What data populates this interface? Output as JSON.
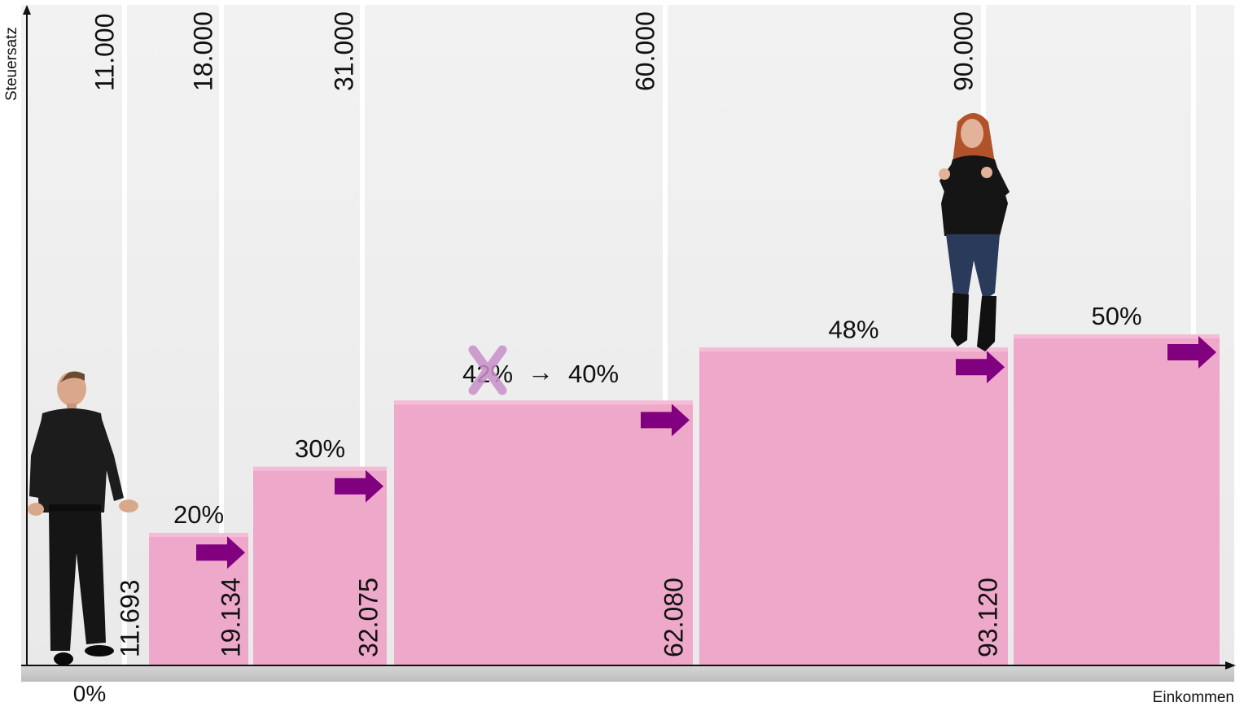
{
  "chart_data": {
    "type": "bar",
    "ylabel": "Steuersatz",
    "xlabel": "Einkommen",
    "zero_rate_label": "0%",
    "old_thresholds": [
      "11.000",
      "18.000",
      "31.000",
      "60.000",
      "90.000"
    ],
    "new_thresholds": [
      "11.693",
      "19.134",
      "32.075",
      "62.080",
      "93.120"
    ],
    "bars": [
      {
        "rate": 20,
        "label": "20%",
        "start": "11.693",
        "end": "19.134"
      },
      {
        "rate": 30,
        "label": "30%",
        "start": "19.134",
        "end": "32.075"
      },
      {
        "rate": 40,
        "label": "40%",
        "old_label": "42%",
        "arrow": "→",
        "start": "32.075",
        "end": "62.080"
      },
      {
        "rate": 48,
        "label": "48%",
        "start": "62.080",
        "end": "93.120"
      },
      {
        "rate": 50,
        "label": "50%",
        "start": "93.120",
        "end": ""
      }
    ],
    "colors": {
      "bar": "#eea8c9",
      "bar_top": "#f4bcd6",
      "arrow": "#800080",
      "strike": "#c890c8",
      "background": "#efefef",
      "ground": "#c4c4c4"
    }
  },
  "figures": [
    {
      "name": "man-figure",
      "description": "man in black shirt standing at 0%"
    },
    {
      "name": "woman-figure",
      "description": "woman giving thumbs up on 48% bar"
    }
  ]
}
